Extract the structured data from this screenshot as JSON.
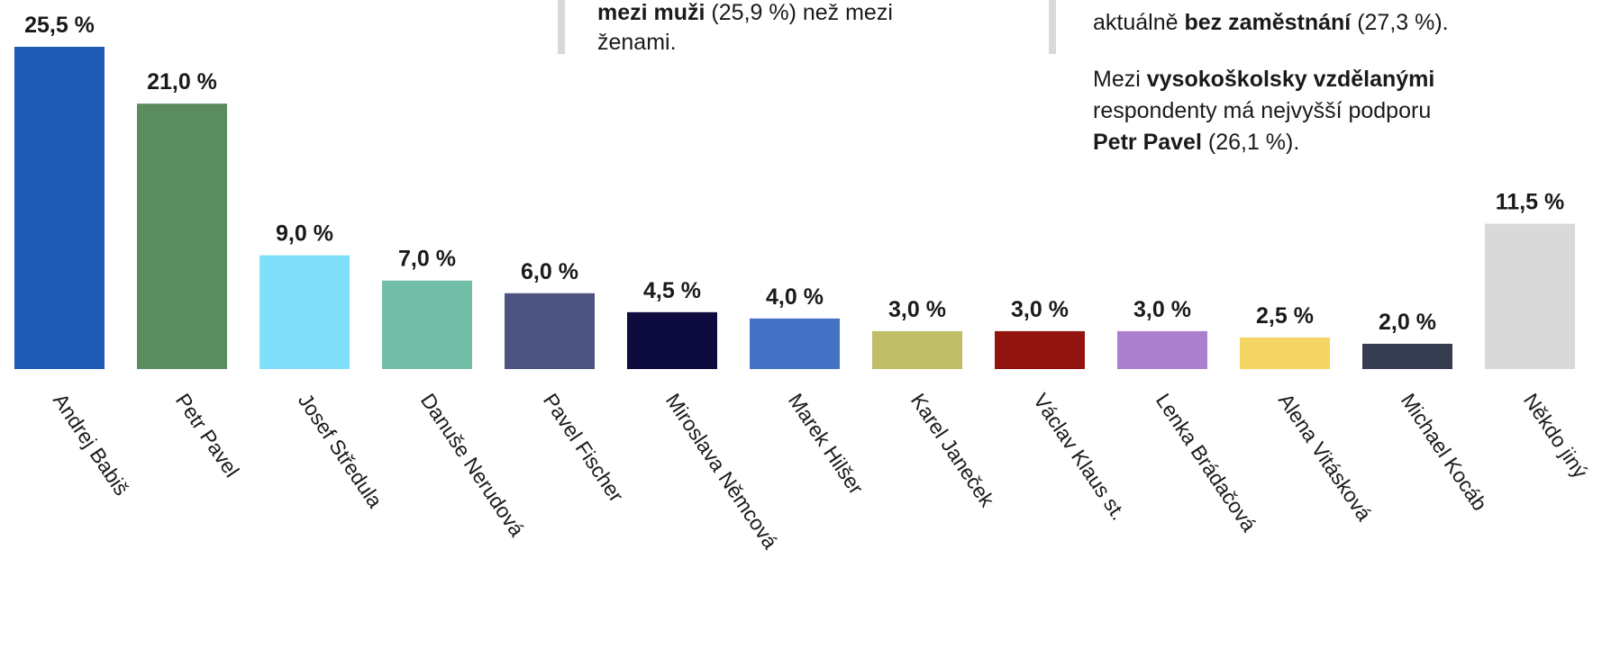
{
  "chart_data": {
    "type": "bar",
    "categories": [
      "Andrej Babiš",
      "Petr Pavel",
      "Josef Středula",
      "Danuše Nerudová",
      "Pavel Fischer",
      "Miroslava Němcová",
      "Marek Hilšer",
      "Karel Janeček",
      "Václav Klaus st.",
      "Lenka Brádačová",
      "Alena Vitásková",
      "Michael Kocáb",
      "Někdo jiný"
    ],
    "values": [
      25.5,
      21.0,
      9.0,
      7.0,
      6.0,
      4.5,
      4.0,
      3.0,
      3.0,
      3.0,
      2.5,
      2.0,
      11.5
    ],
    "value_labels": [
      "25,5 %",
      "21,0 %",
      "9,0 %",
      "7,0 %",
      "6,0 %",
      "4,5 %",
      "4,0 %",
      "3,0 %",
      "3,0 %",
      "3,0 %",
      "2,5 %",
      "2,0 %",
      "11,5 %"
    ],
    "colors": [
      "#1f5bb4",
      "#5b8c5f",
      "#80dffb",
      "#72bda5",
      "#4d5380",
      "#0e0c3e",
      "#4473c5",
      "#bfbe67",
      "#93130f",
      "#ab7fcd",
      "#f4d563",
      "#363d50",
      "#d9d9d9"
    ],
    "annotations": [
      [
        [
          {
            "text": "mezi muži",
            "bold": true
          },
          {
            "text": " (25,9 %) než mezi",
            "bold": false
          }
        ],
        [
          {
            "text": "ženami.",
            "bold": false
          }
        ]
      ],
      [
        [
          {
            "text": "aktuálně ",
            "bold": false
          },
          {
            "text": "bez zaměstnání",
            "bold": true
          },
          {
            "text": " (27,3 %).",
            "bold": false
          }
        ]
      ],
      [
        [
          {
            "text": "Mezi ",
            "bold": false
          },
          {
            "text": "vysokoškolsky vzdělanými",
            "bold": true
          }
        ],
        [
          {
            "text": "respondenty má nejvyšší podporu",
            "bold": false
          }
        ],
        [
          {
            "text": "Petr Pavel",
            "bold": true
          },
          {
            "text": " (26,1 %).",
            "bold": false
          }
        ]
      ]
    ]
  }
}
